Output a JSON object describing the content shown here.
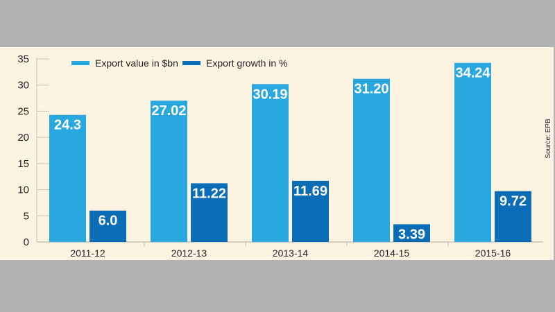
{
  "chart_data": {
    "type": "bar",
    "categories": [
      "2011-12",
      "2012-13",
      "2013-14",
      "2014-15",
      "2015-16"
    ],
    "series": [
      {
        "name": "Export value in $bn",
        "values": [
          24.3,
          27.02,
          30.19,
          31.2,
          34.24
        ],
        "labels": [
          "24.3",
          "27.02",
          "30.19",
          "31.20",
          "34.24"
        ],
        "color": "#29a8e0"
      },
      {
        "name": "Export growth in %",
        "values": [
          6.0,
          11.22,
          11.69,
          3.39,
          9.72
        ],
        "labels": [
          "6.0",
          "11.22",
          "11.69",
          "3.39",
          "9.72"
        ],
        "color": "#0b6db5"
      }
    ],
    "ylim": [
      0,
      35
    ],
    "yticks": [
      "0",
      "5",
      "10",
      "15",
      "20",
      "25",
      "30",
      "35"
    ],
    "legend": "top",
    "grid": false,
    "source": "Source: EPB"
  },
  "colors": {
    "panel": "#fdf3e1",
    "background": "#b3b2b3"
  }
}
